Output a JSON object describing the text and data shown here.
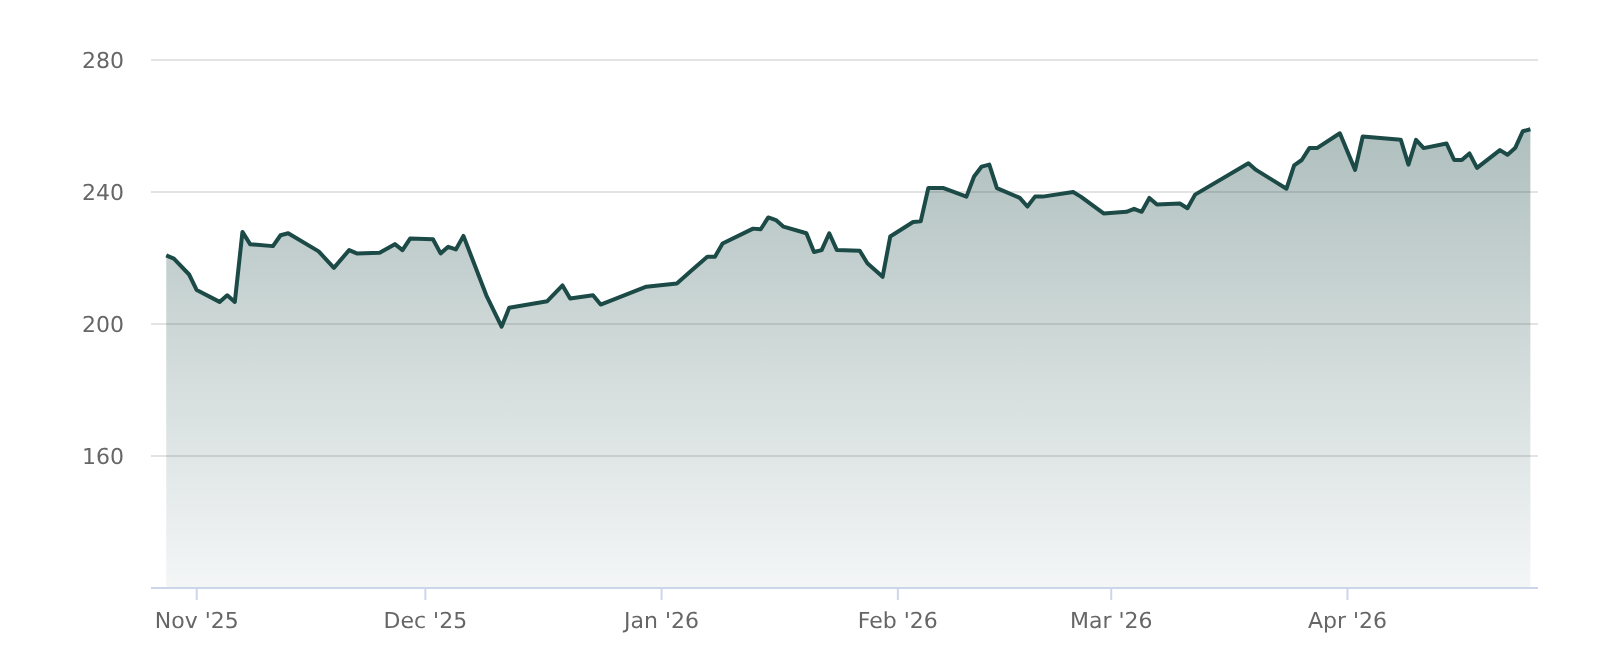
{
  "chart_data": {
    "type": "area",
    "x": [
      "2025-10-28",
      "2025-10-29",
      "2025-10-31",
      "2025-11-01",
      "2025-11-04",
      "2025-11-05",
      "2025-11-06",
      "2025-11-07",
      "2025-11-08",
      "2025-11-11",
      "2025-11-12",
      "2025-11-13",
      "2025-11-17",
      "2025-11-19",
      "2025-11-21",
      "2025-11-22",
      "2025-11-25",
      "2025-11-27",
      "2025-11-28",
      "2025-11-29",
      "2025-12-02",
      "2025-12-03",
      "2025-12-04",
      "2025-12-05",
      "2025-12-06",
      "2025-12-09",
      "2025-12-11",
      "2025-12-12",
      "2025-12-17",
      "2025-12-19",
      "2025-12-20",
      "2025-12-23",
      "2025-12-24",
      "2025-12-30",
      "2026-01-03",
      "2026-01-05",
      "2026-01-07",
      "2026-01-08",
      "2026-01-09",
      "2026-01-13",
      "2026-01-14",
      "2026-01-15",
      "2026-01-16",
      "2026-01-17",
      "2026-01-20",
      "2026-01-21",
      "2026-01-22",
      "2026-01-23",
      "2026-01-24",
      "2026-01-27",
      "2026-01-28",
      "2026-01-30",
      "2026-01-31",
      "2026-02-03",
      "2026-02-04",
      "2026-02-05",
      "2026-02-07",
      "2026-02-10",
      "2026-02-11",
      "2026-02-12",
      "2026-02-13",
      "2026-02-14",
      "2026-02-17",
      "2026-02-18",
      "2026-02-19",
      "2026-02-20",
      "2026-02-24",
      "2026-02-25",
      "2026-02-28",
      "2026-03-03",
      "2026-03-04",
      "2026-03-05",
      "2026-03-06",
      "2026-03-07",
      "2026-03-10",
      "2026-03-11",
      "2026-03-12",
      "2026-03-19",
      "2026-03-20",
      "2026-03-24",
      "2026-03-25",
      "2026-03-26",
      "2026-03-27",
      "2026-03-28",
      "2026-03-31",
      "2026-04-02",
      "2026-04-03",
      "2026-04-08",
      "2026-04-09",
      "2026-04-10",
      "2026-04-11",
      "2026-04-14",
      "2026-04-15",
      "2026-04-16",
      "2026-04-17",
      "2026-04-18",
      "2026-04-21",
      "2026-04-22",
      "2026-04-23",
      "2026-04-24",
      "2026-04-25"
    ],
    "series": [
      {
        "color": "#1b4a47",
        "values": [
          220.8,
          219.8,
          215,
          210.3,
          206.7,
          208.7,
          206.7,
          227.9,
          224.2,
          223.6,
          226.9,
          227.5,
          222,
          217,
          222.4,
          221.4,
          221.6,
          224.2,
          222.4,
          225.9,
          225.7,
          221.4,
          223.4,
          222.6,
          226.7,
          208.7,
          199.2,
          204.9,
          206.9,
          211.7,
          207.7,
          208.7,
          205.9,
          211.3,
          212.3,
          216.4,
          220.4,
          220.4,
          224.4,
          228.9,
          228.7,
          232.3,
          231.5,
          229.5,
          227.5,
          221.8,
          222.4,
          227.5,
          222.4,
          222.2,
          218.4,
          214.3,
          226.5,
          230.9,
          231.1,
          241.2,
          241.2,
          238.6,
          244.7,
          247.7,
          248.3,
          241.2,
          238.2,
          235.6,
          238.6,
          238.6,
          240,
          238.6,
          233.5,
          234,
          234.9,
          234,
          238.2,
          236.2,
          236.5,
          235.1,
          239.2,
          248.7,
          246.7,
          241,
          248.1,
          249.7,
          253.3,
          253.3,
          257.8,
          246.7,
          256.8,
          255.8,
          248.3,
          255.8,
          253.3,
          254.7,
          249.7,
          249.7,
          251.7,
          247.3,
          252.7,
          251.3,
          253.3,
          258.4,
          259
        ]
      }
    ],
    "xlim": [
      "2025-10-26",
      "2026-04-26"
    ],
    "xticks": [
      {
        "value": "2025-11-01",
        "label": "Nov '25"
      },
      {
        "value": "2025-12-01",
        "label": "Dec '25"
      },
      {
        "value": "2026-01-01",
        "label": "Jan '26"
      },
      {
        "value": "2026-02-01",
        "label": "Feb '26"
      },
      {
        "value": "2026-03-01",
        "label": "Mar '26"
      },
      {
        "value": "2026-04-01",
        "label": "Apr '26"
      }
    ],
    "ylim": [
      120,
      280
    ],
    "yticks": [
      160,
      200,
      240,
      280
    ],
    "grid": "y"
  }
}
